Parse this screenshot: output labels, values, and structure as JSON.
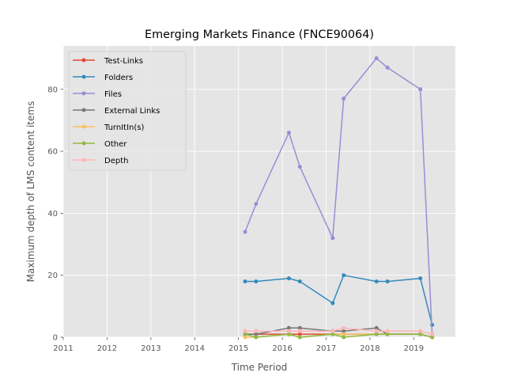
{
  "chart_data": {
    "type": "line",
    "title": "Emerging Markets Finance (FNCE90064)",
    "xlabel": "Time Period",
    "ylabel": "Maximum depth of LMS content items",
    "xlim": [
      2011,
      2019.95
    ],
    "ylim": [
      0,
      94
    ],
    "xticks": [
      2011,
      2012,
      2013,
      2014,
      2015,
      2016,
      2017,
      2018,
      2019
    ],
    "yticks": [
      0,
      20,
      40,
      60,
      80
    ],
    "grid": true,
    "legend_position": "upper-left",
    "series": [
      {
        "name": "Test-Links",
        "color": "#E24A33",
        "x": [
          2015.15,
          2015.4,
          2016.15,
          2016.4,
          2017.15,
          2017.4,
          2018.15,
          2018.4,
          2019.15,
          2019.42
        ],
        "y": [
          1,
          1,
          1,
          1,
          1,
          1,
          1,
          1,
          1,
          0
        ]
      },
      {
        "name": "Folders",
        "color": "#348ABD",
        "x": [
          2015.15,
          2015.4,
          2016.15,
          2016.4,
          2017.15,
          2017.4,
          2018.15,
          2018.4,
          2019.15,
          2019.42
        ],
        "y": [
          18,
          18,
          19,
          18,
          11,
          20,
          18,
          18,
          19,
          4
        ]
      },
      {
        "name": "Files",
        "color": "#988ED5",
        "x": [
          2015.15,
          2015.4,
          2016.15,
          2016.4,
          2017.15,
          2017.4,
          2018.15,
          2018.4,
          2019.15,
          2019.42
        ],
        "y": [
          34,
          43,
          66,
          55,
          32,
          77,
          90,
          87,
          80,
          1
        ]
      },
      {
        "name": "External Links",
        "color": "#777777",
        "x": [
          2015.15,
          2015.4,
          2016.15,
          2016.4,
          2017.15,
          2017.4,
          2018.15,
          2018.4,
          2019.15,
          2019.42
        ],
        "y": [
          1,
          1,
          3,
          3,
          2,
          2,
          3,
          1,
          1,
          0
        ]
      },
      {
        "name": "TurnItIn(s)",
        "color": "#FBC15E",
        "x": [
          2015.15,
          2015.4,
          2016.15,
          2016.4,
          2017.15,
          2017.4,
          2018.15,
          2018.4,
          2019.15,
          2019.42
        ],
        "y": [
          0,
          0,
          1,
          0,
          1,
          1,
          1,
          1,
          1,
          0
        ]
      },
      {
        "name": "Other",
        "color": "#8EBA42",
        "x": [
          2015.15,
          2015.4,
          2016.15,
          2016.4,
          2017.15,
          2017.4,
          2018.15,
          2018.4,
          2019.15,
          2019.42
        ],
        "y": [
          1,
          0,
          1,
          0,
          1,
          0,
          1,
          1,
          1,
          0
        ]
      },
      {
        "name": "Depth",
        "color": "#FFB5B8",
        "x": [
          2015.15,
          2015.4,
          2016.15,
          2016.4,
          2017.15,
          2017.4,
          2018.15,
          2018.4,
          2019.15,
          2019.42
        ],
        "y": [
          2,
          2,
          2,
          2,
          2,
          3,
          2,
          2,
          2,
          1
        ]
      }
    ]
  }
}
